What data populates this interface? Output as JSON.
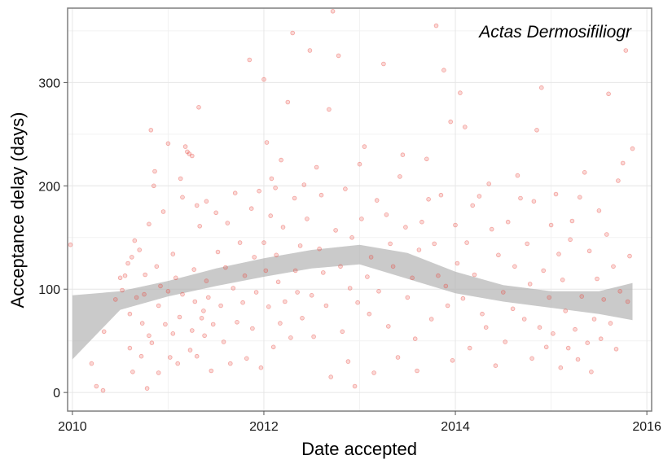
{
  "chart_data": {
    "type": "scatter",
    "title": "",
    "annotation": "Actas Dermosifiliogr",
    "xlabel": "Date accepted",
    "ylabel": "Acceptance delay (days)",
    "xlim": [
      2009.95,
      2016.05
    ],
    "ylim": [
      -18,
      372
    ],
    "x_ticks": [
      2010,
      2012,
      2014,
      2016
    ],
    "y_ticks": [
      0,
      100,
      200,
      300
    ],
    "x_tick_labels": [
      "2010",
      "2012",
      "2014",
      "2016"
    ],
    "y_tick_labels": [
      "0",
      "100",
      "200",
      "300"
    ],
    "grid": true,
    "point_color": "#e8473f",
    "band_color": "#b3b3b3",
    "points": [
      [
        2009.98,
        143
      ],
      [
        2010.2,
        28
      ],
      [
        2010.25,
        6
      ],
      [
        2010.32,
        2
      ],
      [
        2010.33,
        59
      ],
      [
        2010.45,
        90
      ],
      [
        2010.5,
        111
      ],
      [
        2010.52,
        99
      ],
      [
        2010.55,
        113
      ],
      [
        2010.58,
        125
      ],
      [
        2010.6,
        43
      ],
      [
        2010.6,
        76
      ],
      [
        2010.62,
        131
      ],
      [
        2010.63,
        20
      ],
      [
        2010.65,
        147
      ],
      [
        2010.67,
        92
      ],
      [
        2010.7,
        138
      ],
      [
        2010.72,
        35
      ],
      [
        2010.73,
        67
      ],
      [
        2010.75,
        95
      ],
      [
        2010.76,
        114
      ],
      [
        2010.78,
        4
      ],
      [
        2010.8,
        55
      ],
      [
        2010.8,
        163
      ],
      [
        2010.82,
        254
      ],
      [
        2010.83,
        48
      ],
      [
        2010.85,
        200
      ],
      [
        2010.86,
        214
      ],
      [
        2010.88,
        122
      ],
      [
        2010.9,
        84
      ],
      [
        2010.9,
        19
      ],
      [
        2010.92,
        103
      ],
      [
        2010.95,
        175
      ],
      [
        2010.97,
        66
      ],
      [
        2011.0,
        241
      ],
      [
        2011.0,
        98
      ],
      [
        2011.02,
        34
      ],
      [
        2011.05,
        57
      ],
      [
        2011.05,
        134
      ],
      [
        2011.08,
        111
      ],
      [
        2011.1,
        28
      ],
      [
        2011.12,
        73
      ],
      [
        2011.13,
        207
      ],
      [
        2011.15,
        189
      ],
      [
        2011.15,
        95
      ],
      [
        2011.18,
        238
      ],
      [
        2011.2,
        233
      ],
      [
        2011.22,
        231
      ],
      [
        2011.23,
        41
      ],
      [
        2011.25,
        229
      ],
      [
        2011.25,
        60
      ],
      [
        2011.27,
        119
      ],
      [
        2011.28,
        88
      ],
      [
        2011.3,
        181
      ],
      [
        2011.3,
        35
      ],
      [
        2011.32,
        276
      ],
      [
        2011.33,
        161
      ],
      [
        2011.35,
        72
      ],
      [
        2011.37,
        79
      ],
      [
        2011.38,
        55
      ],
      [
        2011.4,
        185
      ],
      [
        2011.4,
        108
      ],
      [
        2011.42,
        92
      ],
      [
        2011.45,
        21
      ],
      [
        2011.47,
        66
      ],
      [
        2011.5,
        174
      ],
      [
        2011.52,
        136
      ],
      [
        2011.55,
        84
      ],
      [
        2011.58,
        49
      ],
      [
        2011.6,
        121
      ],
      [
        2011.62,
        164
      ],
      [
        2011.65,
        28
      ],
      [
        2011.68,
        101
      ],
      [
        2011.7,
        193
      ],
      [
        2011.72,
        68
      ],
      [
        2011.75,
        145
      ],
      [
        2011.78,
        87
      ],
      [
        2011.8,
        113
      ],
      [
        2011.82,
        33
      ],
      [
        2011.85,
        322
      ],
      [
        2011.87,
        178
      ],
      [
        2011.88,
        62
      ],
      [
        2011.9,
        131
      ],
      [
        2011.92,
        97
      ],
      [
        2011.95,
        195
      ],
      [
        2011.97,
        24
      ],
      [
        2012.0,
        303
      ],
      [
        2012.0,
        145
      ],
      [
        2012.02,
        118
      ],
      [
        2012.03,
        242
      ],
      [
        2012.05,
        83
      ],
      [
        2012.07,
        171
      ],
      [
        2012.08,
        207
      ],
      [
        2012.1,
        44
      ],
      [
        2012.12,
        198
      ],
      [
        2012.13,
        133
      ],
      [
        2012.15,
        107
      ],
      [
        2012.17,
        67
      ],
      [
        2012.18,
        225
      ],
      [
        2012.2,
        160
      ],
      [
        2012.22,
        88
      ],
      [
        2012.25,
        281
      ],
      [
        2012.28,
        53
      ],
      [
        2012.3,
        348
      ],
      [
        2012.32,
        188
      ],
      [
        2012.33,
        118
      ],
      [
        2012.35,
        97
      ],
      [
        2012.38,
        142
      ],
      [
        2012.4,
        72
      ],
      [
        2012.42,
        201
      ],
      [
        2012.45,
        168
      ],
      [
        2012.48,
        331
      ],
      [
        2012.5,
        94
      ],
      [
        2012.52,
        54
      ],
      [
        2012.55,
        218
      ],
      [
        2012.58,
        139
      ],
      [
        2012.6,
        191
      ],
      [
        2012.62,
        116
      ],
      [
        2012.65,
        84
      ],
      [
        2012.68,
        274
      ],
      [
        2012.7,
        15
      ],
      [
        2012.72,
        369
      ],
      [
        2012.75,
        157
      ],
      [
        2012.78,
        326
      ],
      [
        2012.8,
        122
      ],
      [
        2012.82,
        59
      ],
      [
        2012.85,
        197
      ],
      [
        2012.88,
        30
      ],
      [
        2012.9,
        101
      ],
      [
        2012.92,
        150
      ],
      [
        2012.95,
        6
      ],
      [
        2012.98,
        87
      ],
      [
        2013.0,
        221
      ],
      [
        2013.02,
        168
      ],
      [
        2013.05,
        238
      ],
      [
        2013.08,
        112
      ],
      [
        2013.1,
        76
      ],
      [
        2013.12,
        131
      ],
      [
        2013.15,
        19
      ],
      [
        2013.18,
        186
      ],
      [
        2013.2,
        98
      ],
      [
        2013.25,
        318
      ],
      [
        2013.28,
        172
      ],
      [
        2013.3,
        64
      ],
      [
        2013.32,
        144
      ],
      [
        2013.35,
        122
      ],
      [
        2013.4,
        34
      ],
      [
        2013.42,
        209
      ],
      [
        2013.45,
        230
      ],
      [
        2013.48,
        160
      ],
      [
        2013.5,
        92
      ],
      [
        2013.55,
        111
      ],
      [
        2013.58,
        52
      ],
      [
        2013.6,
        21
      ],
      [
        2013.62,
        138
      ],
      [
        2013.65,
        165
      ],
      [
        2013.7,
        226
      ],
      [
        2013.72,
        187
      ],
      [
        2013.75,
        71
      ],
      [
        2013.78,
        144
      ],
      [
        2013.8,
        355
      ],
      [
        2013.82,
        113
      ],
      [
        2013.85,
        191
      ],
      [
        2013.88,
        312
      ],
      [
        2013.9,
        103
      ],
      [
        2013.92,
        84
      ],
      [
        2013.95,
        262
      ],
      [
        2013.97,
        31
      ],
      [
        2014.0,
        162
      ],
      [
        2014.02,
        125
      ],
      [
        2014.05,
        290
      ],
      [
        2014.08,
        91
      ],
      [
        2014.1,
        257
      ],
      [
        2014.12,
        145
      ],
      [
        2014.15,
        43
      ],
      [
        2014.18,
        181
      ],
      [
        2014.2,
        114
      ],
      [
        2014.25,
        190
      ],
      [
        2014.28,
        76
      ],
      [
        2014.32,
        63
      ],
      [
        2014.35,
        202
      ],
      [
        2014.38,
        158
      ],
      [
        2014.42,
        26
      ],
      [
        2014.45,
        133
      ],
      [
        2014.5,
        97
      ],
      [
        2014.52,
        49
      ],
      [
        2014.55,
        165
      ],
      [
        2014.6,
        81
      ],
      [
        2014.62,
        122
      ],
      [
        2014.65,
        210
      ],
      [
        2014.68,
        188
      ],
      [
        2014.72,
        71
      ],
      [
        2014.75,
        144
      ],
      [
        2014.78,
        105
      ],
      [
        2014.8,
        33
      ],
      [
        2014.82,
        185
      ],
      [
        2014.85,
        254
      ],
      [
        2014.88,
        63
      ],
      [
        2014.9,
        295
      ],
      [
        2014.92,
        118
      ],
      [
        2014.95,
        44
      ],
      [
        2014.98,
        92
      ],
      [
        2015.0,
        162
      ],
      [
        2015.02,
        57
      ],
      [
        2015.05,
        192
      ],
      [
        2015.08,
        134
      ],
      [
        2015.1,
        24
      ],
      [
        2015.12,
        109
      ],
      [
        2015.15,
        79
      ],
      [
        2015.18,
        43
      ],
      [
        2015.2,
        148
      ],
      [
        2015.22,
        166
      ],
      [
        2015.25,
        61
      ],
      [
        2015.28,
        32
      ],
      [
        2015.3,
        189
      ],
      [
        2015.32,
        93
      ],
      [
        2015.35,
        213
      ],
      [
        2015.38,
        48
      ],
      [
        2015.4,
        137
      ],
      [
        2015.42,
        20
      ],
      [
        2015.45,
        71
      ],
      [
        2015.48,
        110
      ],
      [
        2015.5,
        176
      ],
      [
        2015.52,
        52
      ],
      [
        2015.55,
        90
      ],
      [
        2015.58,
        153
      ],
      [
        2015.6,
        289
      ],
      [
        2015.62,
        67
      ],
      [
        2015.65,
        122
      ],
      [
        2015.68,
        42
      ],
      [
        2015.7,
        205
      ],
      [
        2015.72,
        98
      ],
      [
        2015.75,
        222
      ],
      [
        2015.78,
        331
      ],
      [
        2015.8,
        88
      ],
      [
        2015.82,
        132
      ],
      [
        2015.85,
        236
      ]
    ],
    "smooth_band": {
      "x": [
        2010,
        2010.5,
        2011,
        2011.5,
        2012,
        2012.5,
        2013,
        2013.5,
        2014,
        2014.5,
        2015,
        2015.5,
        2015.85
      ],
      "lower": [
        32,
        80,
        93,
        103,
        112,
        120,
        124,
        110,
        96,
        88,
        82,
        76,
        70
      ],
      "upper": [
        94,
        98,
        108,
        120,
        130,
        138,
        143,
        135,
        117,
        104,
        98,
        98,
        106
      ]
    }
  }
}
